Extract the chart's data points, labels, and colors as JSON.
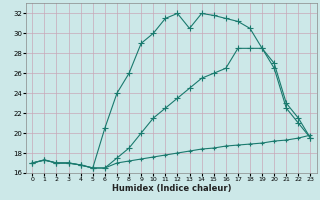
{
  "xlabel": "Humidex (Indice chaleur)",
  "bg_color": "#cce8e8",
  "grid_color": "#b0d0d0",
  "line_color": "#1a7a6e",
  "xlim": [
    -0.5,
    23.5
  ],
  "ylim": [
    16,
    33
  ],
  "xticks": [
    0,
    1,
    2,
    3,
    4,
    5,
    6,
    7,
    8,
    9,
    10,
    11,
    12,
    13,
    14,
    15,
    16,
    17,
    18,
    19,
    20,
    21,
    22,
    23
  ],
  "yticks": [
    16,
    18,
    20,
    22,
    24,
    26,
    28,
    30,
    32
  ],
  "line1_x": [
    0,
    1,
    2,
    3,
    4,
    5,
    6,
    7,
    8,
    9,
    10,
    11,
    12,
    13,
    14,
    15,
    16,
    17,
    18,
    19,
    20,
    21,
    22,
    23
  ],
  "line1_y": [
    17.0,
    17.3,
    17.0,
    17.0,
    16.8,
    16.5,
    20.5,
    24.0,
    26.0,
    29.0,
    30.0,
    31.5,
    32.0,
    30.5,
    32.0,
    31.8,
    31.5,
    31.2,
    30.5,
    28.5,
    27.0,
    23.0,
    21.5,
    19.5
  ],
  "line2_x": [
    0,
    1,
    2,
    3,
    4,
    5,
    6,
    7,
    8,
    9,
    10,
    11,
    12,
    13,
    14,
    15,
    16,
    17,
    18,
    19,
    20,
    21,
    22,
    23
  ],
  "line2_y": [
    17.0,
    17.3,
    17.0,
    17.0,
    16.8,
    16.5,
    16.5,
    17.5,
    18.5,
    20.0,
    21.5,
    22.5,
    23.5,
    24.5,
    25.5,
    26.0,
    26.5,
    28.5,
    28.5,
    28.5,
    26.5,
    22.5,
    21.0,
    19.5
  ],
  "line3_x": [
    0,
    1,
    2,
    3,
    4,
    5,
    6,
    7,
    8,
    9,
    10,
    11,
    12,
    13,
    14,
    15,
    16,
    17,
    18,
    19,
    20,
    21,
    22,
    23
  ],
  "line3_y": [
    17.0,
    17.3,
    17.0,
    17.0,
    16.8,
    16.5,
    16.5,
    17.0,
    17.2,
    17.4,
    17.6,
    17.8,
    18.0,
    18.2,
    18.4,
    18.5,
    18.7,
    18.8,
    18.9,
    19.0,
    19.2,
    19.3,
    19.5,
    19.8
  ]
}
